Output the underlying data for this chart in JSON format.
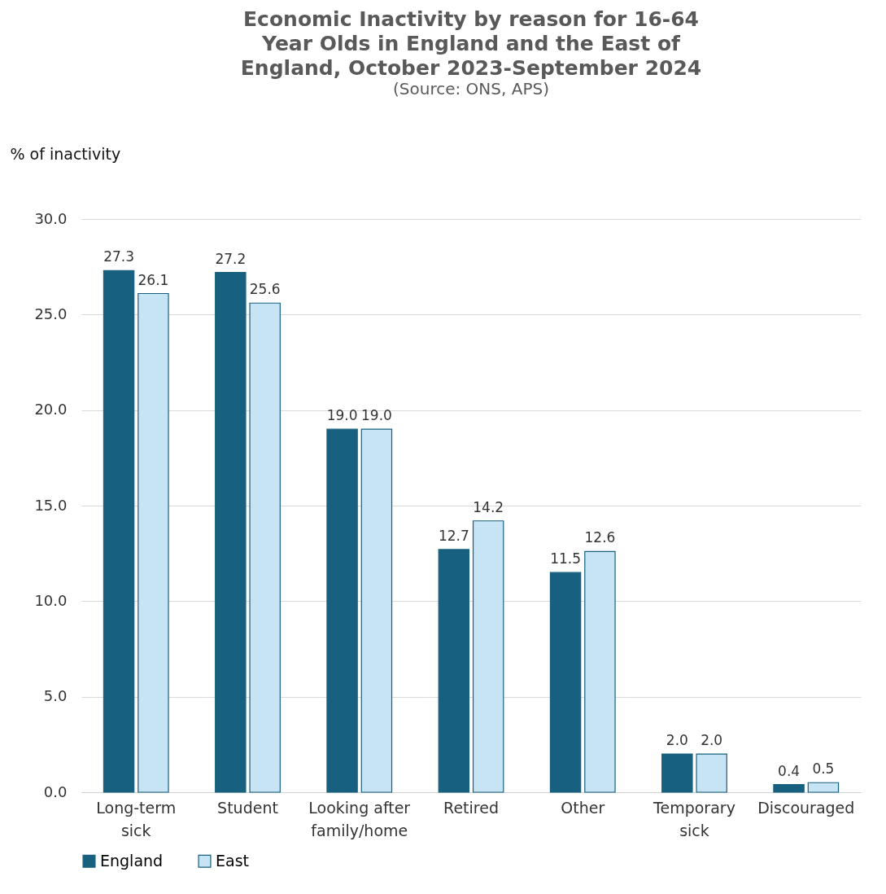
{
  "chart_data": {
    "type": "bar",
    "title": "Economic Inactivity by reason for 16-64 Year Olds in England and the East of England, October 2023-September 2024",
    "subtitle": "(Source: ONS, APS)",
    "ylabel": "% of inactivity",
    "categories": [
      "Long-term sick",
      "Student",
      "Looking after family/home",
      "Retired",
      "Other",
      "Temporary sick",
      "Discouraged"
    ],
    "series": [
      {
        "name": "England",
        "color": "#17607f",
        "values": [
          27.3,
          27.2,
          19.0,
          12.7,
          11.5,
          2.0,
          0.4
        ],
        "value_labels": [
          "27.3",
          "27.2",
          "19.0",
          "12.7",
          "11.5",
          "2.0",
          "0.4"
        ]
      },
      {
        "name": "East",
        "color": "#c6e4f4",
        "values": [
          26.1,
          25.6,
          19.0,
          14.2,
          12.6,
          2.0,
          0.5
        ],
        "value_labels": [
          "26.1",
          "25.6",
          "19.0",
          "14.2",
          "12.6",
          "2.0",
          "0.5"
        ]
      }
    ],
    "ylim": [
      0,
      30
    ],
    "yticks": [
      {
        "value": 0,
        "label": "0.0"
      },
      {
        "value": 5,
        "label": "5.0"
      },
      {
        "value": 10,
        "label": "10.0"
      },
      {
        "value": 15,
        "label": "15.0"
      },
      {
        "value": 20,
        "label": "20.0"
      },
      {
        "value": 25,
        "label": "25.0"
      },
      {
        "value": 30,
        "label": "30.0"
      }
    ],
    "grid": "y",
    "legend": "bottom"
  }
}
